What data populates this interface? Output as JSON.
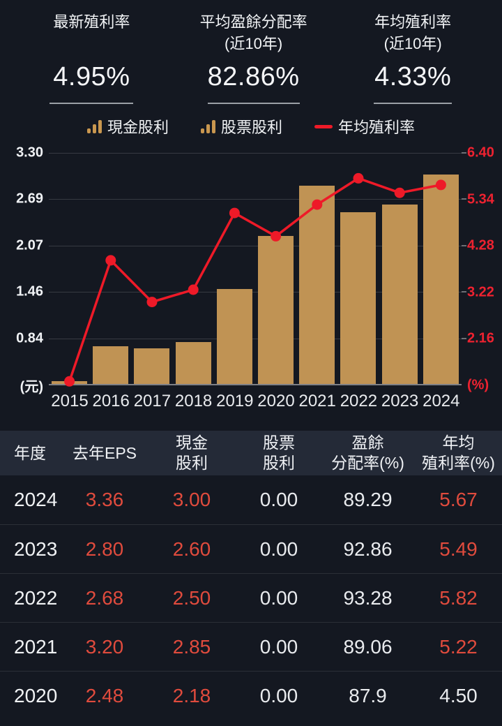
{
  "colors": {
    "background": "#141821",
    "bar_gold": "#c09354",
    "line_red": "#ee1a28",
    "right_axis_red": "#ee2230",
    "table_red": "#e04b3d",
    "table_header_bg": "#242a37",
    "text_white": "#f2f4f6"
  },
  "stats": {
    "cards": [
      {
        "label": "最新殖利率",
        "sublabel": "",
        "value": "4.95%"
      },
      {
        "label": "平均盈餘分配率",
        "sublabel": "(近10年)",
        "value": "82.86%"
      },
      {
        "label": "年均殖利率",
        "sublabel": "(近10年)",
        "value": "4.33%"
      }
    ]
  },
  "legend": {
    "items": [
      {
        "label": "現金股利",
        "type": "bars"
      },
      {
        "label": "股票股利",
        "type": "bars"
      },
      {
        "label": "年均殖利率",
        "type": "line"
      }
    ]
  },
  "chart_data": {
    "type": "bar+line",
    "categories": [
      "2015",
      "2016",
      "2017",
      "2018",
      "2019",
      "2020",
      "2021",
      "2022",
      "2023",
      "2024"
    ],
    "series": [
      {
        "name": "現金股利",
        "type": "bar",
        "axis": "left",
        "values": [
          0.26,
          0.72,
          0.7,
          0.78,
          1.48,
          2.18,
          2.85,
          2.5,
          2.6,
          3.0
        ]
      },
      {
        "name": "股票股利",
        "type": "bar",
        "axis": "left",
        "values": [
          0,
          0,
          0,
          0,
          0,
          0,
          0,
          0,
          0,
          0
        ]
      },
      {
        "name": "年均殖利率",
        "type": "line",
        "axis": "right",
        "values": [
          1.19,
          3.95,
          3.0,
          3.28,
          5.03,
          4.5,
          5.22,
          5.82,
          5.49,
          5.67
        ]
      }
    ],
    "left_axis": {
      "min": 0.225,
      "max": 3.3,
      "unit": "(元)",
      "ticks": [
        3.3,
        2.69,
        2.07,
        1.46,
        0.84
      ],
      "tick_labels": [
        "3.30",
        "2.69",
        "2.07",
        "1.46",
        "0.84"
      ]
    },
    "right_axis": {
      "min": 1.1,
      "max": 6.4,
      "unit": "(%)",
      "ticks": [
        6.4,
        5.34,
        4.28,
        3.22,
        2.16
      ],
      "tick_labels": [
        "6.40",
        "5.34",
        "4.28",
        "3.22",
        "2.16"
      ]
    },
    "grid": true,
    "legend_position": "top"
  },
  "table": {
    "headers": [
      [
        "年度"
      ],
      [
        "去年EPS"
      ],
      [
        "現金",
        "股利"
      ],
      [
        "股票",
        "股利"
      ],
      [
        "盈餘",
        "分配率(%)"
      ],
      [
        "年均",
        "殖利率(%)"
      ]
    ],
    "rows": [
      {
        "cells": [
          {
            "t": "2024",
            "red": false
          },
          {
            "t": "3.36",
            "red": true
          },
          {
            "t": "3.00",
            "red": true
          },
          {
            "t": "0.00",
            "red": false
          },
          {
            "t": "89.29",
            "red": false
          },
          {
            "t": "5.67",
            "red": true
          }
        ]
      },
      {
        "cells": [
          {
            "t": "2023",
            "red": false
          },
          {
            "t": "2.80",
            "red": true
          },
          {
            "t": "2.60",
            "red": true
          },
          {
            "t": "0.00",
            "red": false
          },
          {
            "t": "92.86",
            "red": false
          },
          {
            "t": "5.49",
            "red": true
          }
        ]
      },
      {
        "cells": [
          {
            "t": "2022",
            "red": false
          },
          {
            "t": "2.68",
            "red": true
          },
          {
            "t": "2.50",
            "red": true
          },
          {
            "t": "0.00",
            "red": false
          },
          {
            "t": "93.28",
            "red": false
          },
          {
            "t": "5.82",
            "red": true
          }
        ]
      },
      {
        "cells": [
          {
            "t": "2021",
            "red": false
          },
          {
            "t": "3.20",
            "red": true
          },
          {
            "t": "2.85",
            "red": true
          },
          {
            "t": "0.00",
            "red": false
          },
          {
            "t": "89.06",
            "red": false
          },
          {
            "t": "5.22",
            "red": true
          }
        ]
      },
      {
        "cells": [
          {
            "t": "2020",
            "red": false
          },
          {
            "t": "2.48",
            "red": true
          },
          {
            "t": "2.18",
            "red": true
          },
          {
            "t": "0.00",
            "red": false
          },
          {
            "t": "87.9",
            "red": false
          },
          {
            "t": "4.50",
            "red": false
          }
        ]
      }
    ]
  }
}
